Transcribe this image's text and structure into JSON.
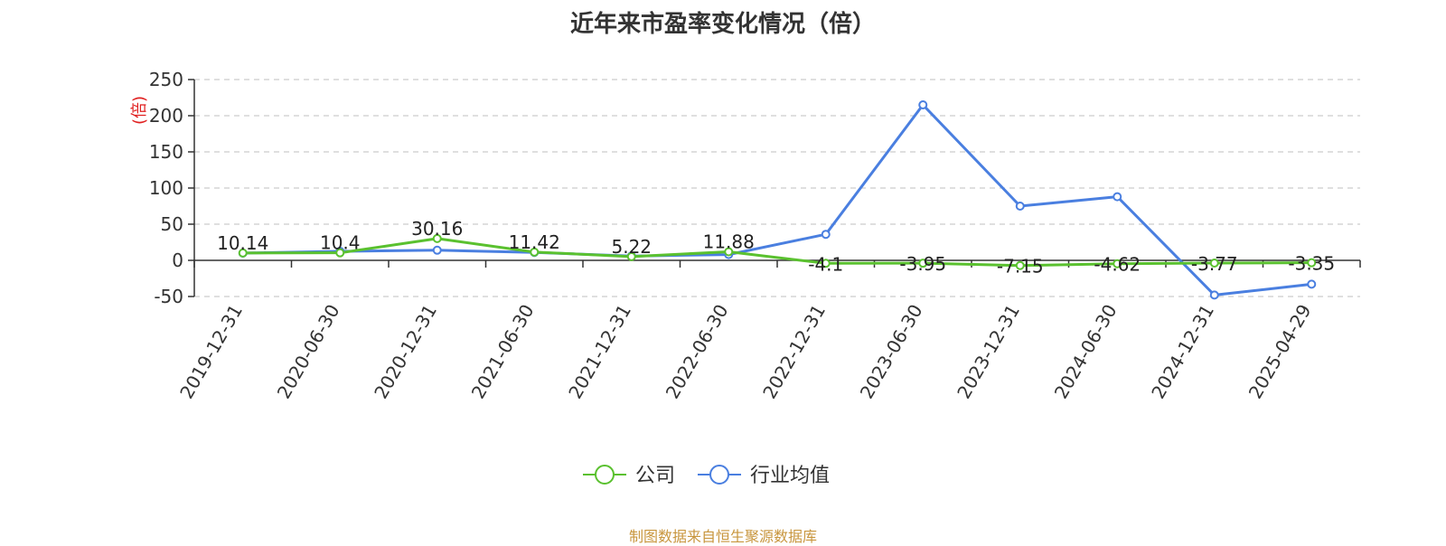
{
  "title": "近年来市盈率变化情况（倍）",
  "source": "制图数据来自恒生聚源数据库",
  "chart_data": {
    "type": "line",
    "title": "近年来市盈率变化情况（倍）",
    "ylabel": "(倍)",
    "ylabel_color": "#e02020",
    "xlabel": "",
    "categories": [
      "2019-12-31",
      "2020-06-30",
      "2020-12-31",
      "2021-06-30",
      "2021-12-31",
      "2022-06-30",
      "2022-12-31",
      "2023-06-30",
      "2023-12-31",
      "2024-06-30",
      "2024-12-31",
      "2025-04-29"
    ],
    "ylim": [
      -50,
      250
    ],
    "yticks": [
      250,
      200,
      150,
      100,
      50,
      0,
      -50
    ],
    "grid": true,
    "legend_position": "bottom-center",
    "series": [
      {
        "name": "公司",
        "color": "#5ac12f",
        "values": [
          10.14,
          10.4,
          30.16,
          11.42,
          5.22,
          11.88,
          -4.1,
          -3.95,
          -7.15,
          -4.62,
          -3.77,
          -3.35
        ],
        "labels": [
          "10.14",
          "10.4",
          "30.16",
          "11.42",
          "5.22",
          "11.88",
          "-4.1",
          "-3.95",
          "-7.15",
          "-4.62",
          "-3.77",
          "-3.35"
        ]
      },
      {
        "name": "行业均值",
        "color": "#4a7fe0",
        "values": [
          10.0,
          12.5,
          14.0,
          11.0,
          6.0,
          8.0,
          36.0,
          215.0,
          75.0,
          88.0,
          -48.0,
          -33.0
        ]
      }
    ]
  }
}
